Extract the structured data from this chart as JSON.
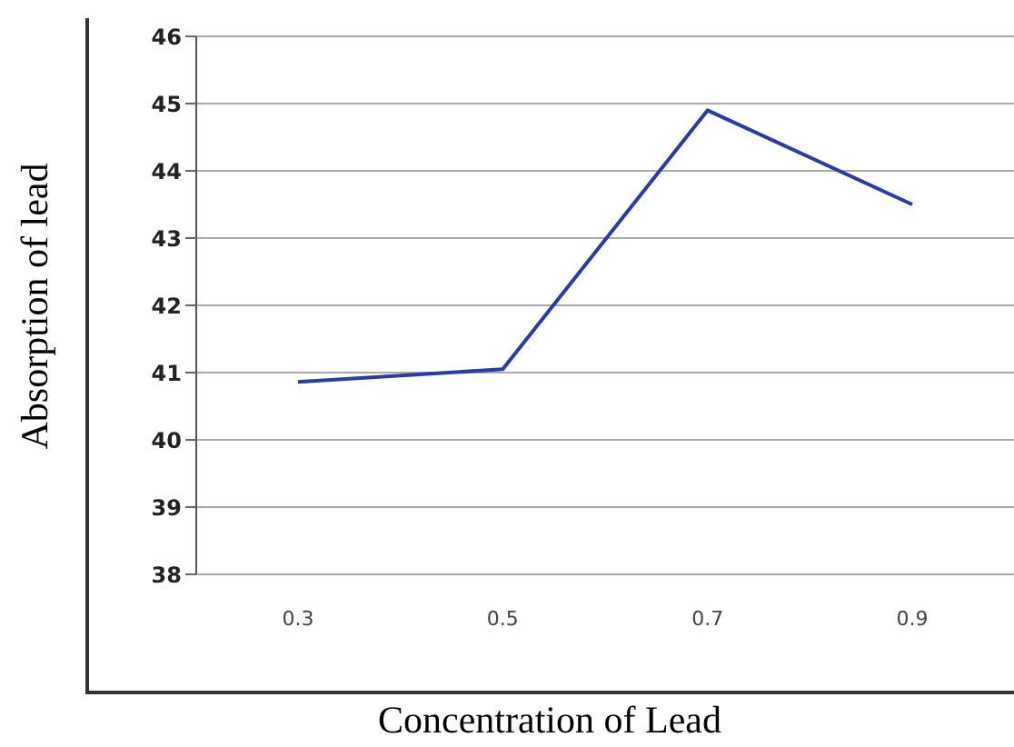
{
  "chart_data": {
    "type": "line",
    "xlabel": "Concentration of Lead",
    "ylabel": "Absorption of lead",
    "categories": [
      "0.3",
      "0.5",
      "0.7",
      "0.9"
    ],
    "series": [
      {
        "color": "#2a3aa8",
        "values": [
          40.86,
          41.05,
          44.9,
          43.5
        ]
      }
    ],
    "ylim": [
      38,
      46
    ],
    "yticks": [
      38,
      39,
      40,
      41,
      42,
      43,
      44,
      45,
      46
    ],
    "grid": "y",
    "marker": "none",
    "line_style": "solid"
  }
}
